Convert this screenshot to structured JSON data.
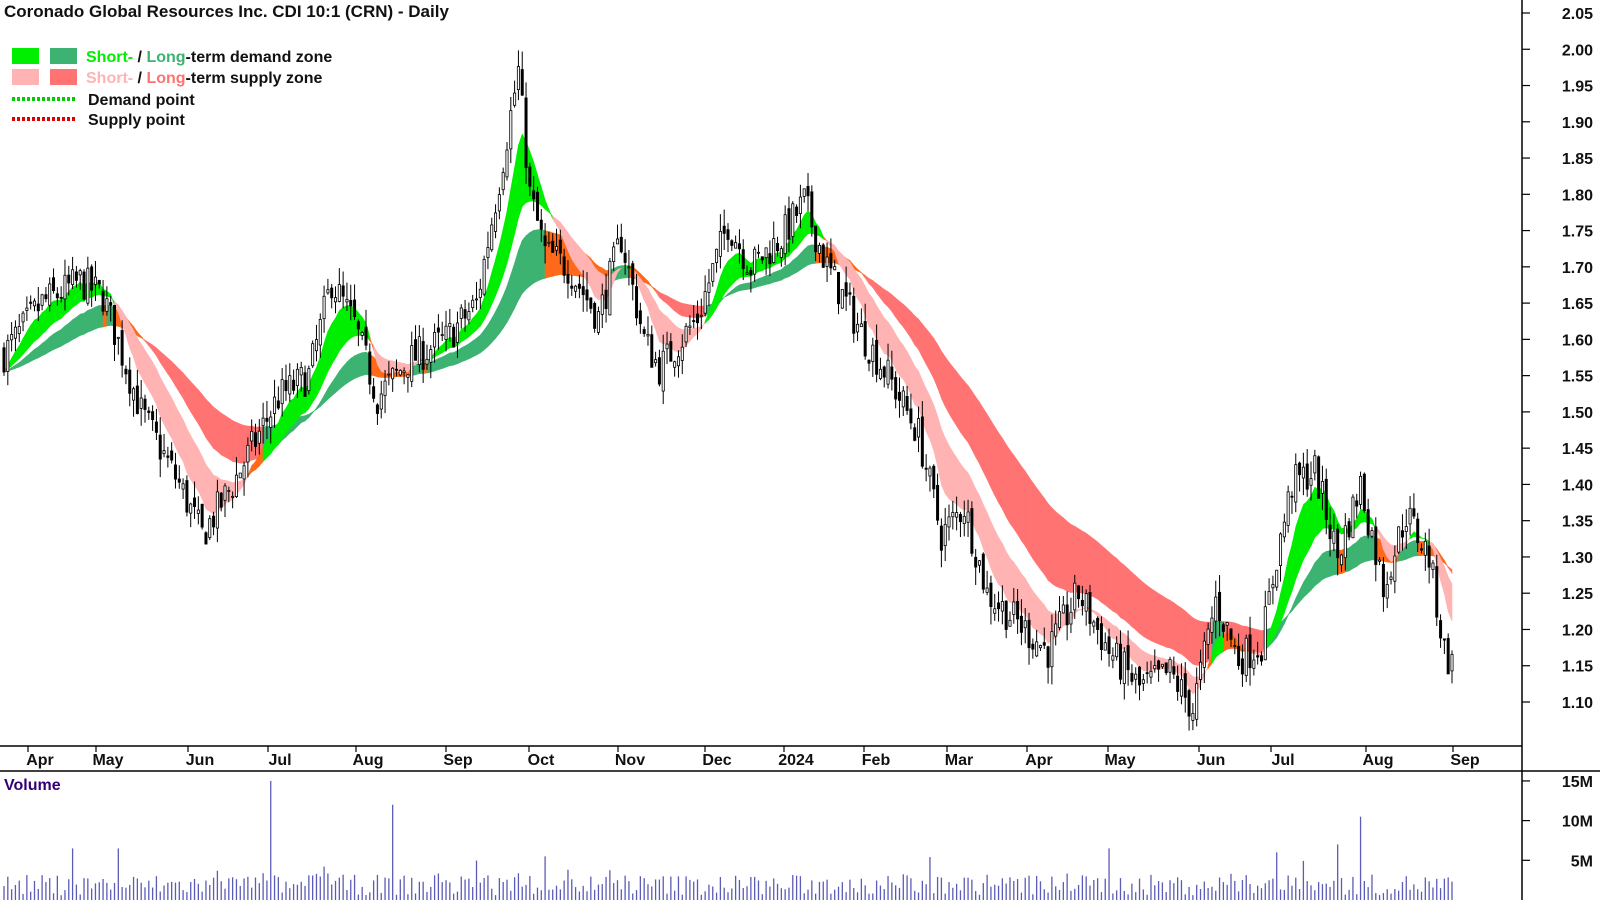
{
  "chart_data": {
    "type": "candlestick",
    "title": "Coronado Global Resources Inc. CDI 10:1 (CRN) - Daily",
    "legend": {
      "placement": "top-left",
      "demand_short": "Short-",
      "demand_sep": " / ",
      "demand_long": "Long",
      "demand_rest": "-term demand zone",
      "supply_short": "Short-",
      "supply_sep": " / ",
      "supply_long": "Long",
      "supply_rest": "-term supply zone",
      "demand_point": "Demand point",
      "supply_point": "Supply point"
    },
    "colors": {
      "demand_short": "#00ee00",
      "demand_long": "#3cb371",
      "supply_short": "#ffb3b3",
      "supply_long": "#ff7373",
      "crossover": "#ff6a1a",
      "demand_point": "#00cc00",
      "supply_point": "#dd0000",
      "candle": "#000000",
      "volume": "#5b5bb8",
      "volume_label": "#330077"
    },
    "price_axis": {
      "min": 1.05,
      "max": 2.05,
      "ticks": [
        "2.05",
        "2.00",
        "1.95",
        "1.90",
        "1.85",
        "1.80",
        "1.75",
        "1.70",
        "1.65",
        "1.60",
        "1.55",
        "1.50",
        "1.45",
        "1.40",
        "1.35",
        "1.30",
        "1.25",
        "1.20",
        "1.15",
        "1.10"
      ]
    },
    "x_axis": {
      "labels": [
        "Apr",
        "May",
        "Jun",
        "Jul",
        "Aug",
        "Sep",
        "Oct",
        "Nov",
        "Dec",
        "2024",
        "Feb",
        "Mar",
        "Apr",
        "May",
        "Jun",
        "Jul",
        "Aug",
        "Sep"
      ]
    },
    "price_path": [
      {
        "t": 0,
        "p": 1.58
      },
      {
        "t": 10,
        "p": 1.65
      },
      {
        "t": 20,
        "p": 1.68
      },
      {
        "t": 26,
        "p": 1.66
      },
      {
        "t": 36,
        "p": 1.5
      },
      {
        "t": 46,
        "p": 1.4
      },
      {
        "t": 52,
        "p": 1.33
      },
      {
        "t": 60,
        "p": 1.4
      },
      {
        "t": 72,
        "p": 1.52
      },
      {
        "t": 80,
        "p": 1.55
      },
      {
        "t": 86,
        "p": 1.68
      },
      {
        "t": 92,
        "p": 1.62
      },
      {
        "t": 98,
        "p": 1.52
      },
      {
        "t": 106,
        "p": 1.57
      },
      {
        "t": 116,
        "p": 1.6
      },
      {
        "t": 124,
        "p": 1.65
      },
      {
        "t": 130,
        "p": 1.82
      },
      {
        "t": 135,
        "p": 1.97
      },
      {
        "t": 138,
        "p": 1.8
      },
      {
        "t": 142,
        "p": 1.72
      },
      {
        "t": 148,
        "p": 1.7
      },
      {
        "t": 156,
        "p": 1.63
      },
      {
        "t": 162,
        "p": 1.74
      },
      {
        "t": 168,
        "p": 1.6
      },
      {
        "t": 172,
        "p": 1.56
      },
      {
        "t": 182,
        "p": 1.63
      },
      {
        "t": 190,
        "p": 1.76
      },
      {
        "t": 196,
        "p": 1.7
      },
      {
        "t": 204,
        "p": 1.74
      },
      {
        "t": 210,
        "p": 1.79
      },
      {
        "t": 216,
        "p": 1.7
      },
      {
        "t": 222,
        "p": 1.64
      },
      {
        "t": 226,
        "p": 1.6
      },
      {
        "t": 232,
        "p": 1.55
      },
      {
        "t": 240,
        "p": 1.47
      },
      {
        "t": 246,
        "p": 1.33
      },
      {
        "t": 252,
        "p": 1.37
      },
      {
        "t": 258,
        "p": 1.25
      },
      {
        "t": 266,
        "p": 1.21
      },
      {
        "t": 274,
        "p": 1.17
      },
      {
        "t": 282,
        "p": 1.25
      },
      {
        "t": 290,
        "p": 1.17
      },
      {
        "t": 298,
        "p": 1.12
      },
      {
        "t": 306,
        "p": 1.14
      },
      {
        "t": 312,
        "p": 1.09
      },
      {
        "t": 318,
        "p": 1.24
      },
      {
        "t": 324,
        "p": 1.16
      },
      {
        "t": 330,
        "p": 1.18
      },
      {
        "t": 334,
        "p": 1.3
      },
      {
        "t": 338,
        "p": 1.4
      },
      {
        "t": 344,
        "p": 1.42
      },
      {
        "t": 350,
        "p": 1.3
      },
      {
        "t": 356,
        "p": 1.4
      },
      {
        "t": 362,
        "p": 1.26
      },
      {
        "t": 368,
        "p": 1.36
      },
      {
        "t": 374,
        "p": 1.3
      },
      {
        "t": 378,
        "p": 1.17
      },
      {
        "t": 380,
        "p": 1.15
      }
    ],
    "volume_axis": {
      "min": 0,
      "max": 16,
      "unit": "M",
      "ticks": [
        "15M",
        "10M",
        "5M"
      ]
    },
    "volume_label": "Volume",
    "volume_spikes": [
      {
        "t": 70,
        "v": 15.0
      },
      {
        "t": 102,
        "v": 12.0
      },
      {
        "t": 356,
        "v": 10.5
      },
      {
        "t": 350,
        "v": 7.0
      },
      {
        "t": 290,
        "v": 6.5
      },
      {
        "t": 334,
        "v": 6.0
      },
      {
        "t": 18,
        "v": 6.5
      },
      {
        "t": 30,
        "v": 6.5
      },
      {
        "t": 142,
        "v": 5.5
      }
    ],
    "grid": false
  }
}
